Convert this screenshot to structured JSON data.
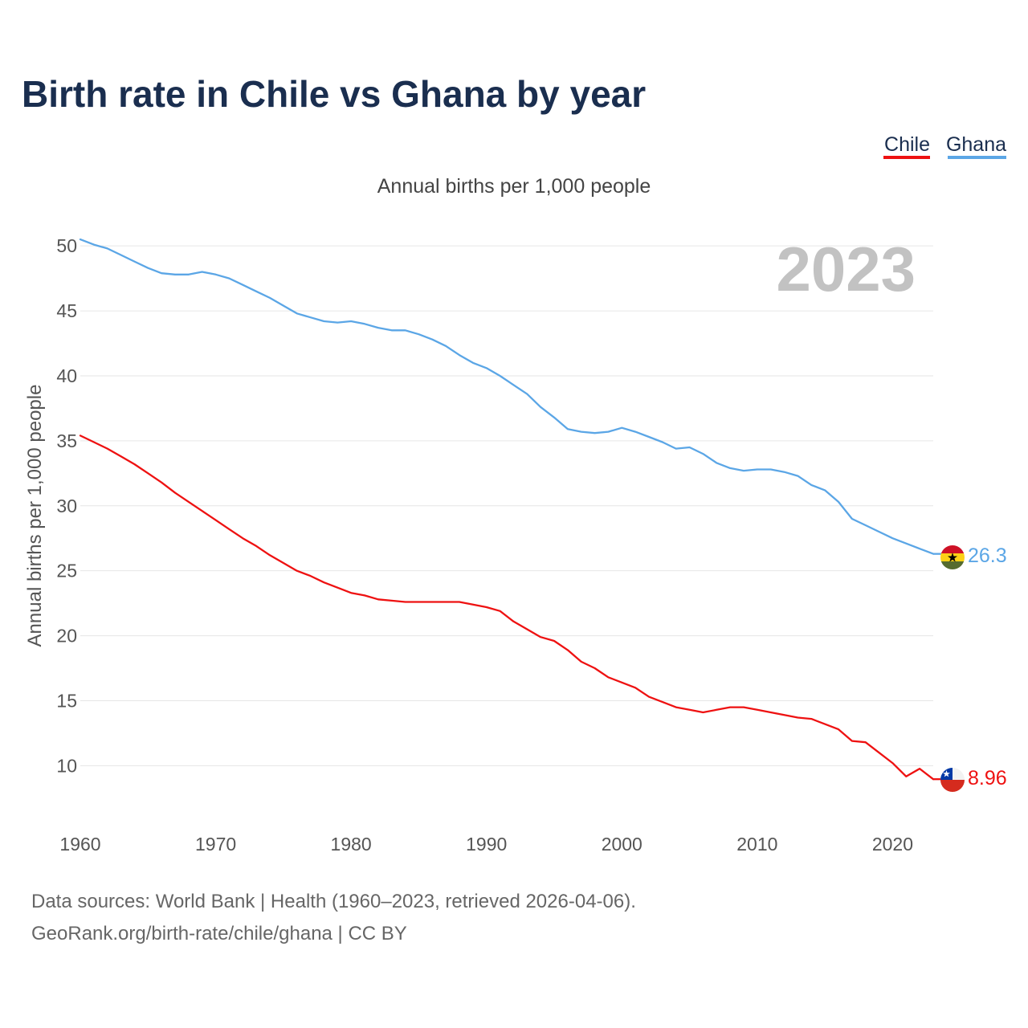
{
  "title": "Birth rate in Chile vs Ghana by year",
  "subtitle": "Annual births per 1,000 people",
  "year_label": "2023",
  "legend": [
    {
      "label": "Chile",
      "color": "#ee1111"
    },
    {
      "label": "Ghana",
      "color": "#5ba6e6"
    }
  ],
  "sources": {
    "line1": "Data sources: World Bank | Health (1960–2023, retrieved 2026-04-06).",
    "line2": "GeoRank.org/birth-rate/chile/ghana | CC BY"
  },
  "chart_data": {
    "type": "line",
    "title": "Birth rate in Chile vs Ghana by year",
    "subtitle": "Annual births per 1,000 people",
    "xlabel": "",
    "ylabel": "Annual births per 1,000 people",
    "xlim": [
      1960,
      2023
    ],
    "ylim": [
      6.5,
      51
    ],
    "x_ticks": [
      1960,
      1970,
      1980,
      1990,
      2000,
      2010,
      2020
    ],
    "y_ticks": [
      10,
      15,
      20,
      25,
      30,
      35,
      40,
      45,
      50
    ],
    "grid": true,
    "legend_position": "top-right",
    "x": [
      1960,
      1961,
      1962,
      1963,
      1964,
      1965,
      1966,
      1967,
      1968,
      1969,
      1970,
      1971,
      1972,
      1973,
      1974,
      1975,
      1976,
      1977,
      1978,
      1979,
      1980,
      1981,
      1982,
      1983,
      1984,
      1985,
      1986,
      1987,
      1988,
      1989,
      1990,
      1991,
      1992,
      1993,
      1994,
      1995,
      1996,
      1997,
      1998,
      1999,
      2000,
      2001,
      2002,
      2003,
      2004,
      2005,
      2006,
      2007,
      2008,
      2009,
      2010,
      2011,
      2012,
      2013,
      2014,
      2015,
      2016,
      2017,
      2018,
      2019,
      2020,
      2021,
      2022,
      2023
    ],
    "series": [
      {
        "name": "Chile",
        "color": "#ee1111",
        "end_label": "8.96",
        "values": [
          35.4,
          34.9,
          34.4,
          33.8,
          33.2,
          32.5,
          31.8,
          31.0,
          30.3,
          29.6,
          28.9,
          28.2,
          27.5,
          26.9,
          26.2,
          25.6,
          25.0,
          24.6,
          24.1,
          23.7,
          23.3,
          23.1,
          22.8,
          22.7,
          22.6,
          22.6,
          22.6,
          22.6,
          22.6,
          22.4,
          22.2,
          21.9,
          21.1,
          20.5,
          19.9,
          19.6,
          18.9,
          18.0,
          17.5,
          16.8,
          16.4,
          16.0,
          15.3,
          14.9,
          14.5,
          14.3,
          14.1,
          14.3,
          14.5,
          14.5,
          14.3,
          14.1,
          13.9,
          13.7,
          13.6,
          13.2,
          12.8,
          11.9,
          11.8,
          11.0,
          10.2,
          9.17,
          9.77,
          8.96
        ]
      },
      {
        "name": "Ghana",
        "color": "#5ba6e6",
        "end_label": "26.3",
        "values": [
          50.5,
          50.1,
          49.8,
          49.3,
          48.8,
          48.3,
          47.9,
          47.8,
          47.8,
          48.0,
          47.8,
          47.5,
          47.0,
          46.5,
          46.0,
          45.4,
          44.8,
          44.5,
          44.2,
          44.1,
          44.2,
          44.0,
          43.7,
          43.5,
          43.5,
          43.2,
          42.8,
          42.3,
          41.6,
          41.0,
          40.6,
          40.0,
          39.3,
          38.6,
          37.6,
          36.8,
          35.9,
          35.7,
          35.6,
          35.7,
          36.0,
          35.7,
          35.3,
          34.9,
          34.4,
          34.5,
          34.0,
          33.3,
          32.9,
          32.7,
          32.8,
          32.8,
          32.6,
          32.3,
          31.6,
          31.2,
          30.3,
          29.0,
          28.5,
          28.0,
          27.5,
          27.1,
          26.7,
          26.3
        ]
      }
    ]
  }
}
